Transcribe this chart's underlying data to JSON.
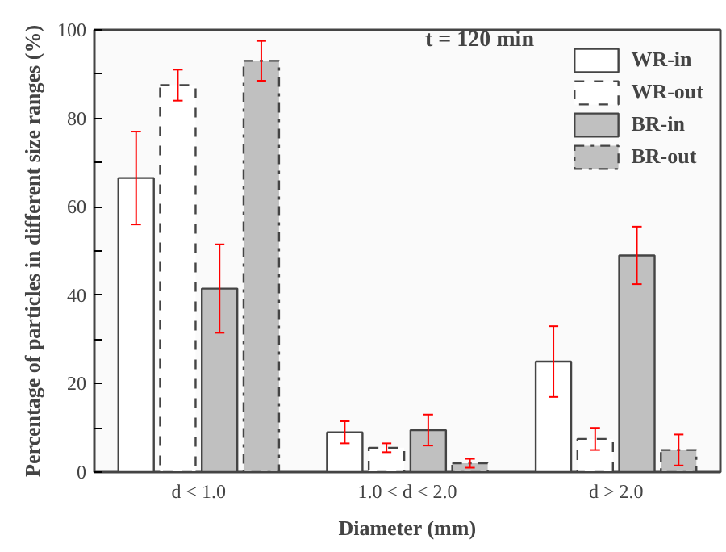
{
  "chart_data": {
    "type": "bar",
    "xlabel": "Diameter (mm)",
    "ylabel": "Percentage of particles in different size ranges (%)",
    "annotations": [
      "t = 120 min"
    ],
    "categories": [
      "d < 1.0",
      "1.0 < d < 2.0",
      "d > 2.0"
    ],
    "series": [
      {
        "name": "WR-in",
        "color": "#ffffff",
        "line_style": "solid",
        "values": [
          66.5,
          9,
          25
        ],
        "errors": [
          10.5,
          2.5,
          8
        ]
      },
      {
        "name": "WR-out",
        "color": "#ffffff",
        "line_style": "dashed",
        "values": [
          87.5,
          5.5,
          7.5
        ],
        "errors": [
          3.5,
          1,
          2.5
        ]
      },
      {
        "name": "BR-in",
        "color": "#c0c0c0",
        "line_style": "solid",
        "values": [
          41.5,
          9.5,
          49
        ],
        "errors": [
          10,
          3.5,
          6.5
        ]
      },
      {
        "name": "BR-out",
        "color": "#c0c0c0",
        "line_style": "dashdot",
        "values": [
          93,
          2,
          5
        ],
        "errors": [
          4.5,
          1,
          3.5
        ]
      }
    ],
    "ylim": [
      0,
      100
    ],
    "yticks": [
      0,
      {
        "value": 10,
        "label": null
      },
      20,
      {
        "value": 30,
        "label": null
      },
      40,
      {
        "value": 50,
        "label": null
      },
      60,
      {
        "value": 70,
        "label": null
      },
      80,
      {
        "value": 90,
        "label": null
      },
      100
    ],
    "grid": false,
    "legend": "top right"
  }
}
